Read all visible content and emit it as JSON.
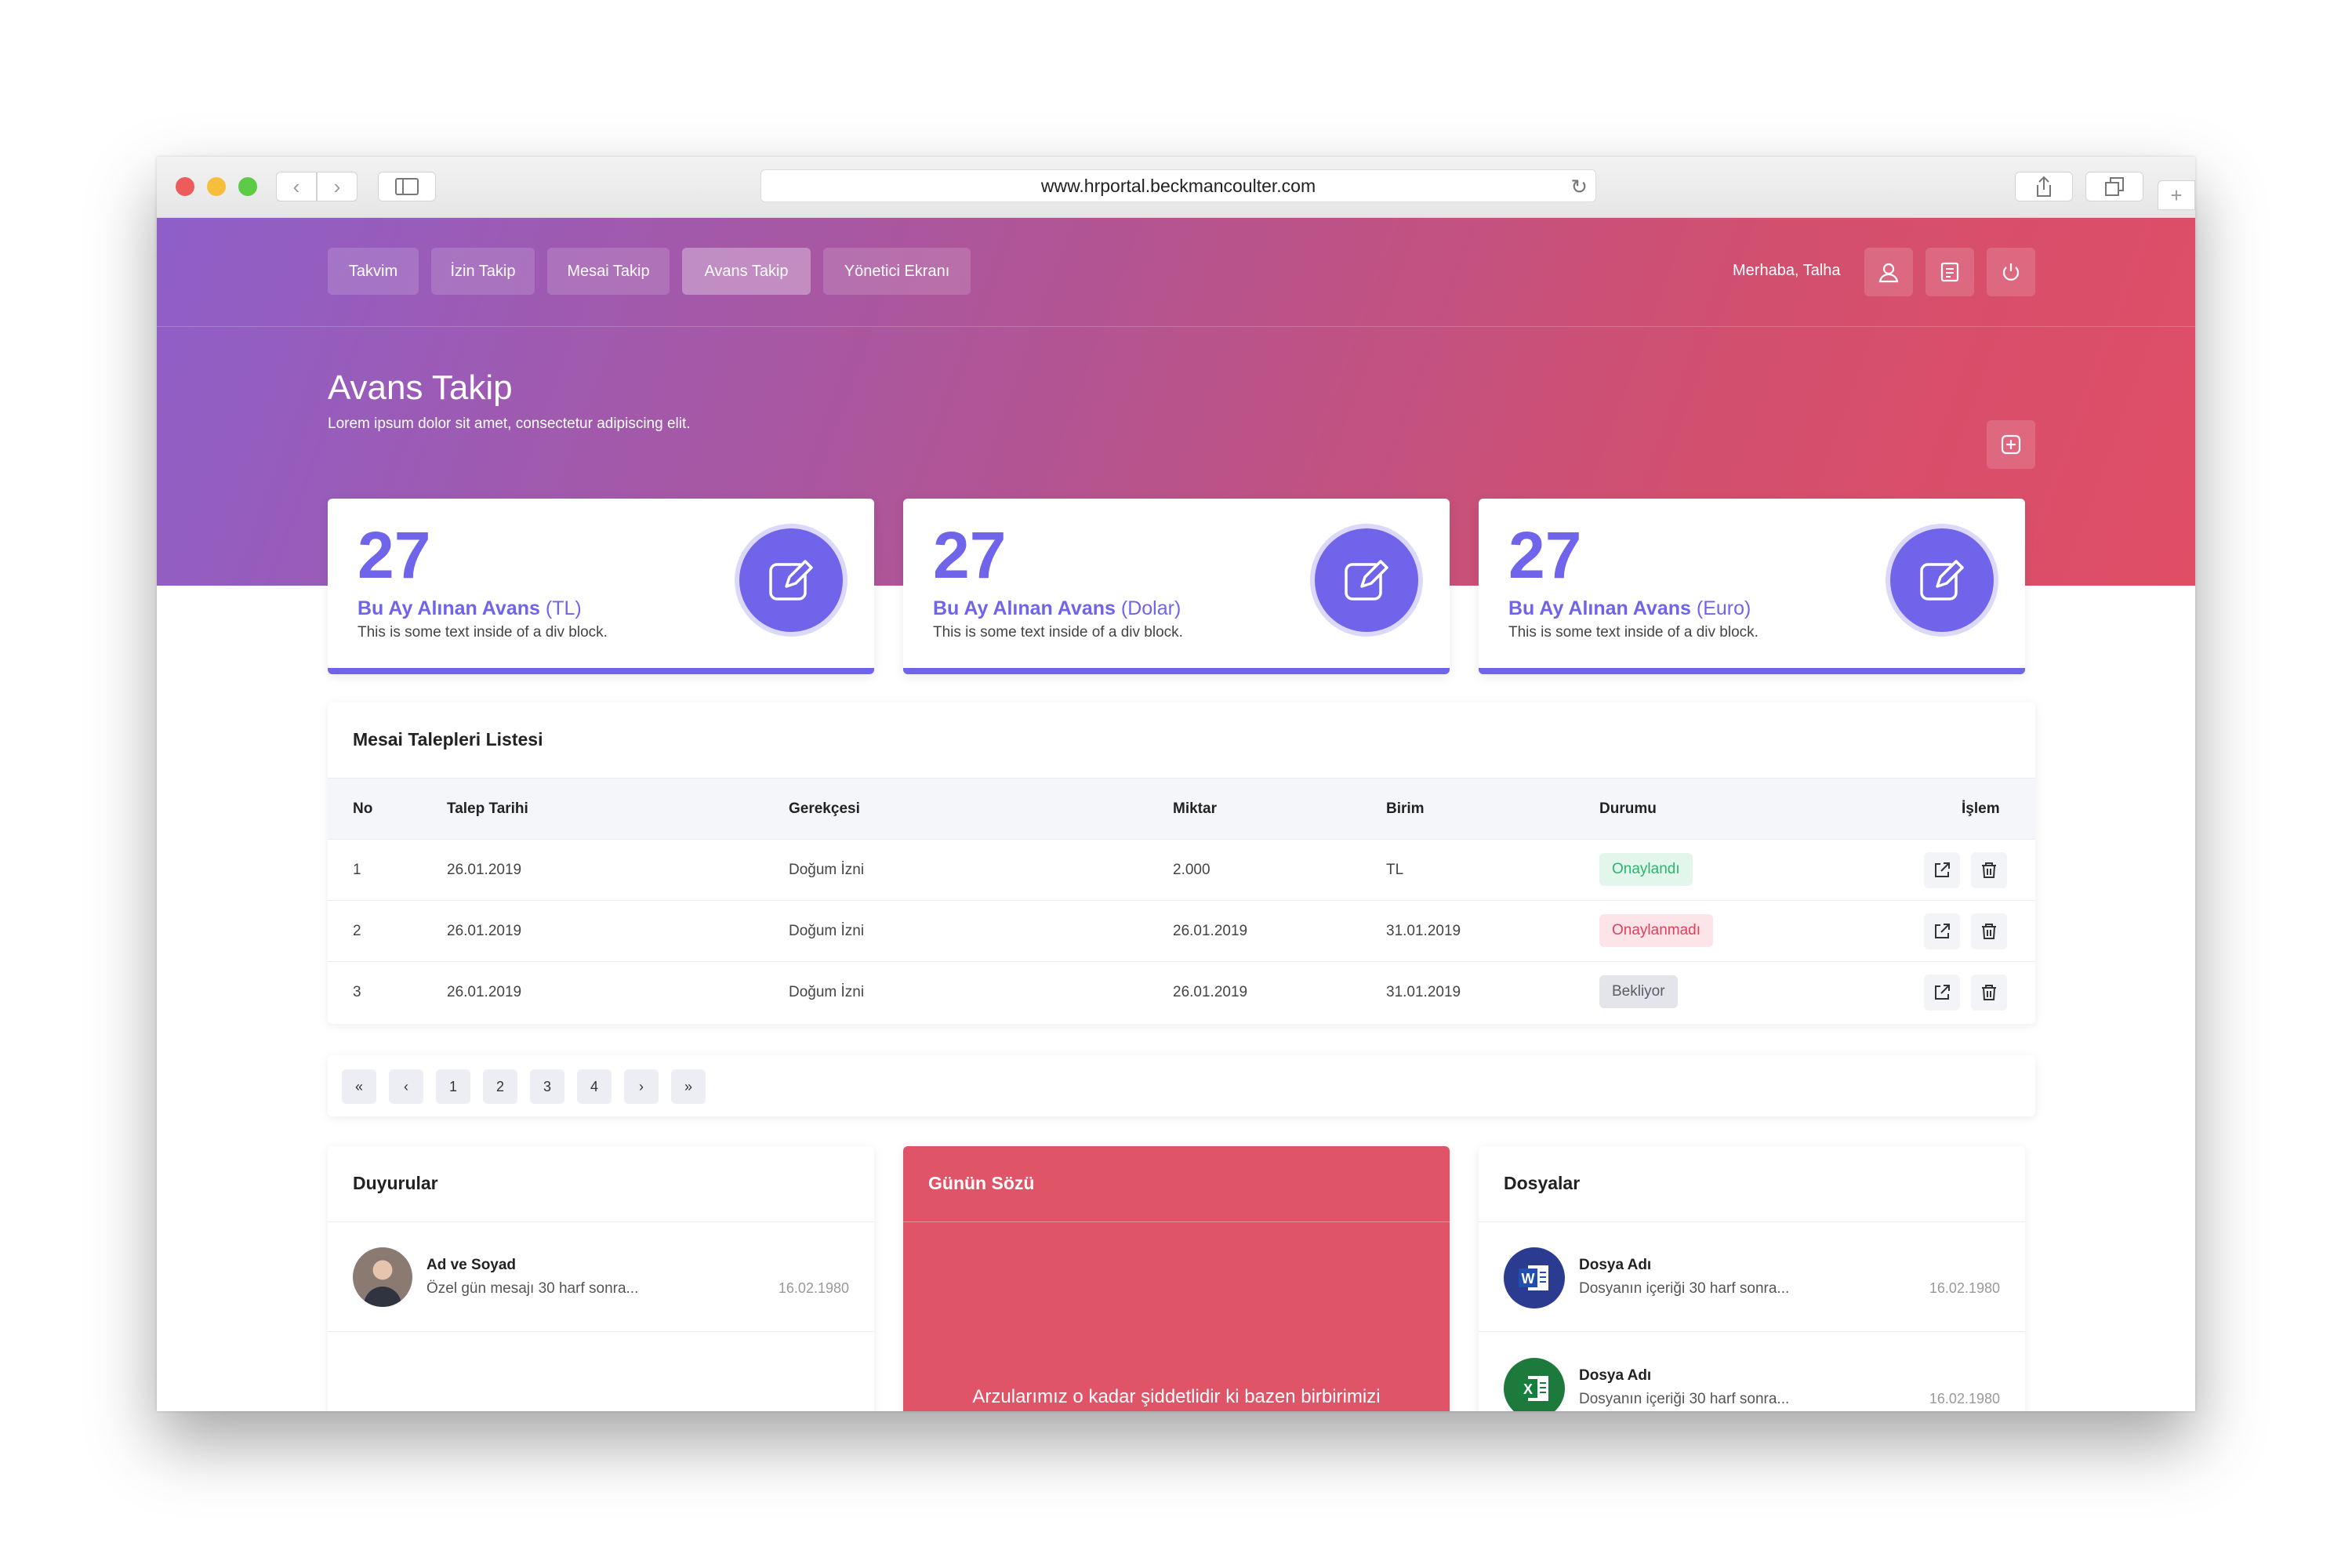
{
  "browser": {
    "url": "www.hrportal.beckmancoulter.com"
  },
  "nav": {
    "items": [
      {
        "label": "Takvim"
      },
      {
        "label": "İzin Takip"
      },
      {
        "label": "Mesai Takip"
      },
      {
        "label": "Avans Takip"
      },
      {
        "label": "Yönetici Ekranı"
      }
    ],
    "active": "Avans Takip",
    "greeting": "Merhaba, Talha"
  },
  "hero": {
    "title": "Avans Takip",
    "subtitle": "Lorem ipsum dolor sit amet, consectetur adipiscing elit."
  },
  "stats": [
    {
      "value": "27",
      "label": "Bu Ay Alınan Avans",
      "unit": "(TL)",
      "desc": "This is some text inside of a div block."
    },
    {
      "value": "27",
      "label": "Bu Ay Alınan Avans",
      "unit": "(Dolar)",
      "desc": "This is some text inside of a div block."
    },
    {
      "value": "27",
      "label": "Bu Ay Alınan Avans",
      "unit": "(Euro)",
      "desc": "This is some text inside of a div block."
    }
  ],
  "table": {
    "title": "Mesai Talepleri Listesi",
    "columns": [
      "No",
      "Talep Tarihi",
      "Gerekçesi",
      "Miktar",
      "Birim",
      "Durumu",
      "İşlem"
    ],
    "rows": [
      {
        "no": "1",
        "date": "26.01.2019",
        "reason": "Doğum İzni",
        "amount": "2.000",
        "unit": "TL",
        "status": "Onaylandı"
      },
      {
        "no": "2",
        "date": "26.01.2019",
        "reason": "Doğum İzni",
        "amount": "26.01.2019",
        "unit": "31.01.2019",
        "status": "Onaylanmadı"
      },
      {
        "no": "3",
        "date": "26.01.2019",
        "reason": "Doğum İzni",
        "amount": "26.01.2019",
        "unit": "31.01.2019",
        "status": "Bekliyor"
      }
    ]
  },
  "pagination": {
    "pages": [
      "1",
      "2",
      "3",
      "4"
    ]
  },
  "announcements": {
    "title": "Duyurular",
    "items": [
      {
        "name": "Ad ve Soyad",
        "text": "Özel gün mesajı 30 harf sonra...",
        "date": "16.02.1980"
      }
    ]
  },
  "quote": {
    "title": "Günün Sözü",
    "text": "Arzularımız o kadar şiddetlidir ki bazen birbirimizi"
  },
  "files": {
    "title": "Dosyalar",
    "items": [
      {
        "name": "Dosya Adı",
        "text": "Dosyanın içeriği 30 harf sonra...",
        "date": "16.02.1980",
        "type": "word-icon"
      },
      {
        "name": "Dosya Adı",
        "text": "Dosyanın içeriği 30 harf sonra...",
        "date": "16.02.1980",
        "type": "excel-icon"
      }
    ]
  },
  "colors": {
    "accent": "#6f64ea",
    "hero_start": "#8e5fc9",
    "hero_end": "#e04e66",
    "quote_bg": "#e05468",
    "success": "#2fb36e",
    "danger": "#e0405a",
    "neutral": "#5a5d66"
  }
}
